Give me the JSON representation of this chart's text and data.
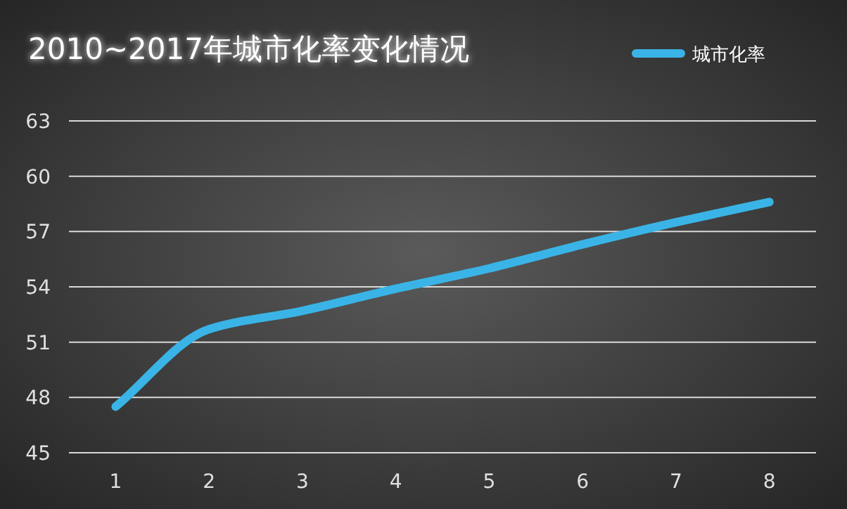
{
  "chart_data": {
    "type": "line",
    "title": "2010~2017年城市化率变化情况",
    "categories": [
      "1",
      "2",
      "3",
      "4",
      "5",
      "6",
      "7",
      "8"
    ],
    "series": [
      {
        "name": "城市化率",
        "color": "#3ab4e6",
        "values": [
          47.5,
          51.7,
          52.7,
          53.9,
          55.0,
          56.3,
          57.5,
          58.6
        ]
      }
    ],
    "ylim": [
      45,
      63
    ],
    "yticks": [
      45,
      48,
      51,
      54,
      57,
      60,
      63
    ],
    "grid": "y",
    "legend": "top right"
  }
}
